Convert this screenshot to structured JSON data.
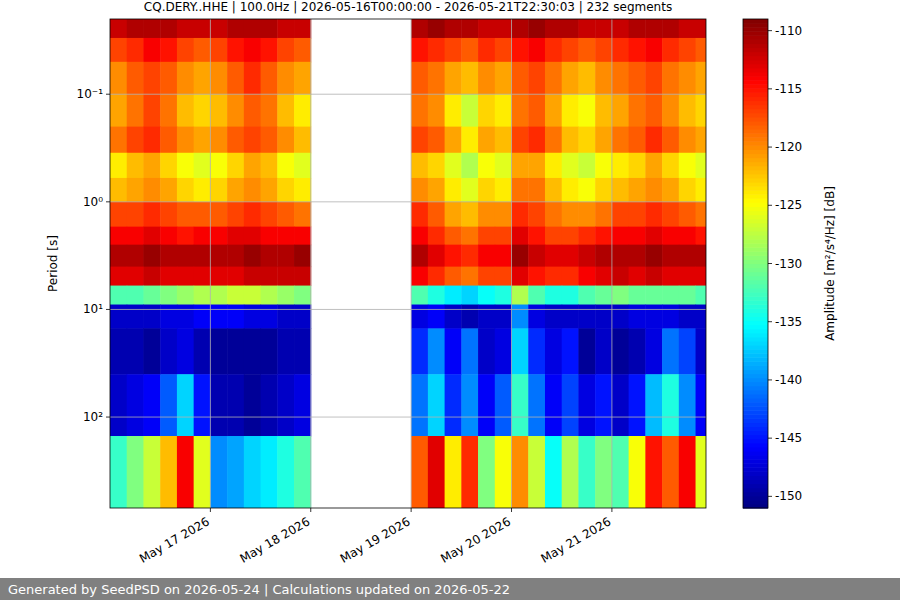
{
  "chart_data": {
    "type": "heatmap",
    "title": "CQ.DERY..HHE | 100.0Hz | 2026-05-16T00:00:00 - 2026-05-21T22:30:03 | 232 segments",
    "y_label": "Period [s]",
    "log": "y",
    "grid": true,
    "xlim": [
      "2026-05-16T00:00",
      "2026-05-21T22:30"
    ],
    "ylim": [
      0.02,
      700
    ],
    "xticks": [
      {
        "value": "2026-05-17T00:00",
        "label": "May 17 2026"
      },
      {
        "value": "2026-05-18T00:00",
        "label": "May 18 2026"
      },
      {
        "value": "2026-05-19T00:00",
        "label": "May 19 2026"
      },
      {
        "value": "2026-05-20T00:00",
        "label": "May 20 2026"
      },
      {
        "value": "2026-05-21T00:00",
        "label": "May 21 2026"
      }
    ],
    "yticks": [
      {
        "value": 0.1,
        "label": "10⁻¹"
      },
      {
        "value": 1,
        "label": "10⁰"
      },
      {
        "value": 10,
        "label": "10¹"
      },
      {
        "value": 100,
        "label": "10²"
      }
    ],
    "time_edges": [
      "2026-05-16T00:00",
      "2026-05-16T04:00",
      "2026-05-16T08:00",
      "2026-05-16T12:00",
      "2026-05-16T16:00",
      "2026-05-16T20:00",
      "2026-05-17T00:00",
      "2026-05-17T04:00",
      "2026-05-17T08:00",
      "2026-05-17T12:00",
      "2026-05-17T16:00",
      "2026-05-17T20:00",
      "2026-05-18T00:00",
      "2026-05-18T04:00",
      "2026-05-18T08:00",
      "2026-05-18T12:00",
      "2026-05-18T16:00",
      "2026-05-18T20:00",
      "2026-05-19T00:00",
      "2026-05-19T04:00",
      "2026-05-19T08:00",
      "2026-05-19T12:00",
      "2026-05-19T16:00",
      "2026-05-19T20:00",
      "2026-05-20T00:00",
      "2026-05-20T04:00",
      "2026-05-20T08:00",
      "2026-05-20T12:00",
      "2026-05-20T16:00",
      "2026-05-20T20:00",
      "2026-05-21T00:00",
      "2026-05-21T04:00",
      "2026-05-21T08:00",
      "2026-05-21T12:00",
      "2026-05-21T16:00",
      "2026-05-21T20:00",
      "2026-05-22T00:00"
    ],
    "period_edges": [
      0.02,
      0.03,
      0.05,
      0.1,
      0.2,
      0.35,
      0.6,
      1,
      1.7,
      2.5,
      4,
      6,
      9,
      15,
      40,
      150,
      700
    ],
    "cells": [
      [
        -112,
        -111,
        -111,
        -111,
        -112,
        -112,
        -112,
        -111,
        -111,
        -111,
        -112,
        -112,
        null,
        null,
        null,
        null,
        null,
        null,
        -111,
        -110,
        -111,
        -111,
        -112,
        -112,
        -111,
        -110,
        -111,
        -111,
        -112,
        -112,
        -112,
        -111,
        -111,
        -111,
        -112,
        -112
      ],
      [
        -117,
        -116,
        -114,
        -115,
        -117,
        -118,
        -117,
        -115,
        -114,
        -115,
        -117,
        -118,
        null,
        null,
        null,
        null,
        null,
        null,
        -115,
        -116,
        -117,
        -118,
        -116,
        -117,
        -115,
        -114,
        -116,
        -117,
        -118,
        -117,
        -116,
        -115,
        -114,
        -116,
        -117,
        -118
      ],
      [
        -120,
        -118,
        -117,
        -118,
        -120,
        -121,
        -120,
        -118,
        -116,
        -118,
        -120,
        -121,
        null,
        null,
        null,
        null,
        null,
        null,
        -118,
        -119,
        -121,
        -122,
        -120,
        -121,
        -118,
        -117,
        -119,
        -121,
        -122,
        -120,
        -119,
        -118,
        -117,
        -119,
        -120,
        -121
      ],
      [
        -121,
        -119,
        -117,
        -119,
        -122,
        -123,
        -122,
        -120,
        -118,
        -119,
        -122,
        -124,
        null,
        null,
        null,
        null,
        null,
        null,
        -119,
        -120,
        -124,
        -127,
        -123,
        -124,
        -119,
        -118,
        -121,
        -124,
        -125,
        -122,
        -121,
        -119,
        -118,
        -120,
        -122,
        -123
      ],
      [
        -119,
        -117,
        -116,
        -118,
        -120,
        -121,
        -120,
        -118,
        -117,
        -118,
        -120,
        -122,
        null,
        null,
        null,
        null,
        null,
        null,
        -117,
        -118,
        -121,
        -124,
        -121,
        -122,
        -117,
        -116,
        -119,
        -122,
        -123,
        -121,
        -119,
        -118,
        -116,
        -118,
        -120,
        -121
      ],
      [
        -124,
        -122,
        -121,
        -123,
        -125,
        -126,
        -125,
        -123,
        -121,
        -122,
        -125,
        -126,
        null,
        null,
        null,
        null,
        null,
        null,
        -122,
        -123,
        -126,
        -128,
        -125,
        -126,
        -121,
        -121,
        -124,
        -126,
        -127,
        -125,
        -124,
        -123,
        -121,
        -123,
        -125,
        -126
      ],
      [
        -122,
        -121,
        -120,
        -121,
        -123,
        -124,
        -123,
        -121,
        -120,
        -121,
        -123,
        -124,
        null,
        null,
        null,
        null,
        null,
        null,
        -120,
        -121,
        -124,
        -126,
        -123,
        -124,
        -119,
        -119,
        -122,
        -124,
        -125,
        -123,
        -122,
        -121,
        -120,
        -121,
        -123,
        -124
      ],
      [
        -117,
        -117,
        -116,
        -117,
        -118,
        -118,
        -118,
        -117,
        -116,
        -117,
        -118,
        -119,
        null,
        null,
        null,
        null,
        null,
        null,
        -116,
        -118,
        -121,
        -122,
        -120,
        -120,
        -116,
        -117,
        -119,
        -120,
        -120,
        -119,
        -117,
        -117,
        -116,
        -117,
        -118,
        -119
      ],
      [
        -114,
        -114,
        -113,
        -114,
        -115,
        -114,
        -114,
        -113,
        -113,
        -114,
        -114,
        -114,
        null,
        null,
        null,
        null,
        null,
        null,
        -114,
        -116,
        -118,
        -119,
        -117,
        -117,
        -113,
        -115,
        -117,
        -117,
        -116,
        -115,
        -114,
        -114,
        -113,
        -114,
        -114,
        -115
      ],
      [
        -111,
        -111,
        -110,
        -111,
        -111,
        -111,
        -111,
        -111,
        -110,
        -111,
        -111,
        -110,
        null,
        null,
        null,
        null,
        null,
        null,
        -111,
        -113,
        -115,
        -116,
        -114,
        -114,
        -110,
        -112,
        -113,
        -113,
        -112,
        -111,
        -111,
        -111,
        -110,
        -111,
        -111,
        -111
      ],
      [
        -113,
        -113,
        -112,
        -113,
        -113,
        -113,
        -113,
        -113,
        -112,
        -112,
        -112,
        -112,
        null,
        null,
        null,
        null,
        null,
        null,
        -114,
        -116,
        -118,
        -119,
        -117,
        -117,
        -113,
        -115,
        -116,
        -116,
        -114,
        -113,
        -112,
        -113,
        -112,
        -113,
        -113,
        -113
      ],
      [
        -132,
        -132,
        -131,
        -130,
        -129,
        -128,
        -128,
        -127,
        -127,
        -128,
        -129,
        -130,
        null,
        null,
        null,
        null,
        null,
        null,
        -132,
        -134,
        -136,
        -137,
        -135,
        -134,
        -128,
        -132,
        -134,
        -134,
        -132,
        -131,
        -130,
        -131,
        -131,
        -131,
        -131,
        -132
      ],
      [
        -148,
        -148,
        -148,
        -147,
        -147,
        -146,
        -146,
        -146,
        -147,
        -147,
        -148,
        -148,
        null,
        null,
        null,
        null,
        null,
        null,
        -147,
        -146,
        -148,
        -149,
        -148,
        -148,
        -140,
        -147,
        -148,
        -148,
        -148,
        -148,
        -148,
        -147,
        -147,
        -147,
        -148,
        -148
      ],
      [
        -149,
        -149,
        -150,
        -148,
        -147,
        -149,
        -150,
        -150,
        -150,
        -150,
        -149,
        -149,
        null,
        null,
        null,
        null,
        null,
        null,
        -144,
        -140,
        -146,
        -141,
        -148,
        -147,
        -137,
        -144,
        -147,
        -145,
        -150,
        -148,
        -150,
        -149,
        -147,
        -141,
        -143,
        -148
      ],
      [
        -148,
        -147,
        -146,
        -142,
        -137,
        -145,
        -149,
        -149,
        -150,
        -149,
        -148,
        -147,
        null,
        null,
        null,
        null,
        null,
        null,
        -141,
        -137,
        -144,
        -140,
        -146,
        -142,
        -133,
        -141,
        -146,
        -143,
        -147,
        -145,
        -148,
        -145,
        -138,
        -134,
        -140,
        -146
      ],
      [
        -133,
        -130,
        -127,
        -122,
        -114,
        -126,
        -140,
        -139,
        -137,
        -136,
        -134,
        -132,
        null,
        null,
        null,
        null,
        null,
        null,
        -118,
        -113,
        -124,
        -116,
        -130,
        -125,
        -120,
        -127,
        -135,
        -128,
        -133,
        -130,
        -132,
        -125,
        -115,
        -118,
        -114,
        -126
      ]
    ],
    "colorbar": {
      "label": "Amplitude [m²/s⁴/Hz] [dB]",
      "range": [
        -151,
        -109
      ],
      "ticks": [
        -110,
        -115,
        -120,
        -125,
        -130,
        -135,
        -140,
        -145,
        -150
      ]
    }
  },
  "footer": "Generated by SeedPSD on 2026-05-24 | Calculations updated on 2026-05-22"
}
